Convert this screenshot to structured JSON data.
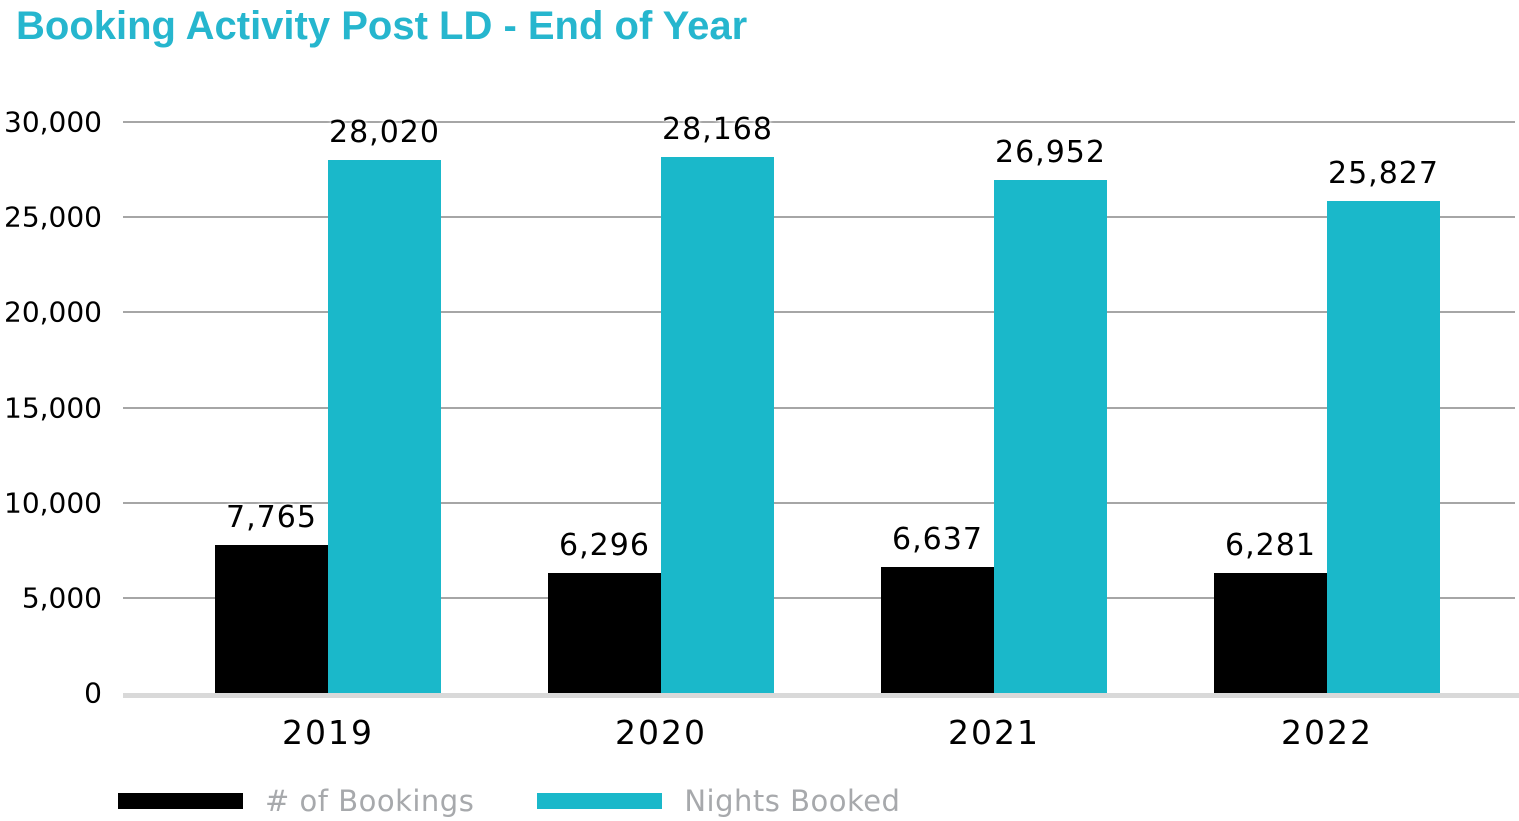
{
  "title": "Booking Activity Post LD - End of Year",
  "colors": {
    "title_teal": "#26b6ce",
    "bar_teal": "#1ab8ca",
    "bar_black": "#000000",
    "gridline": "#a6a6a6",
    "baseline": "#d9d9d9",
    "legend_text": "#a7a9ac",
    "label_text": "#000000"
  },
  "chart_data": {
    "type": "bar",
    "title": "Booking Activity Post LD - End of Year",
    "categories": [
      "2019",
      "2020",
      "2021",
      "2022"
    ],
    "series": [
      {
        "name": "# of Bookings",
        "color_key": "bar_black",
        "values": [
          7765,
          6296,
          6637,
          6281
        ]
      },
      {
        "name": "Nights Booked",
        "color_key": "bar_teal",
        "values": [
          28020,
          28168,
          26952,
          25827
        ]
      }
    ],
    "data_labels": {
      "bookings": [
        "7,765",
        "6,296",
        "6,637",
        "6,281"
      ],
      "nights": [
        "28,020",
        "28,168",
        "26,952",
        "25,827"
      ]
    },
    "xlabel": "",
    "ylabel": "",
    "ylim": [
      0,
      30000
    ],
    "yticks": [
      {
        "value": 0,
        "label": "0"
      },
      {
        "value": 5000,
        "label": "5,000"
      },
      {
        "value": 10000,
        "label": "10,000"
      },
      {
        "value": 15000,
        "label": "15,000"
      },
      {
        "value": 20000,
        "label": "20,000"
      },
      {
        "value": 25000,
        "label": "25,000"
      },
      {
        "value": 30000,
        "label": "30,000"
      }
    ],
    "grid": true,
    "legend_position": "bottom"
  },
  "legend": {
    "items": [
      {
        "label": "# of Bookings"
      },
      {
        "label": "Nights Booked"
      }
    ]
  }
}
